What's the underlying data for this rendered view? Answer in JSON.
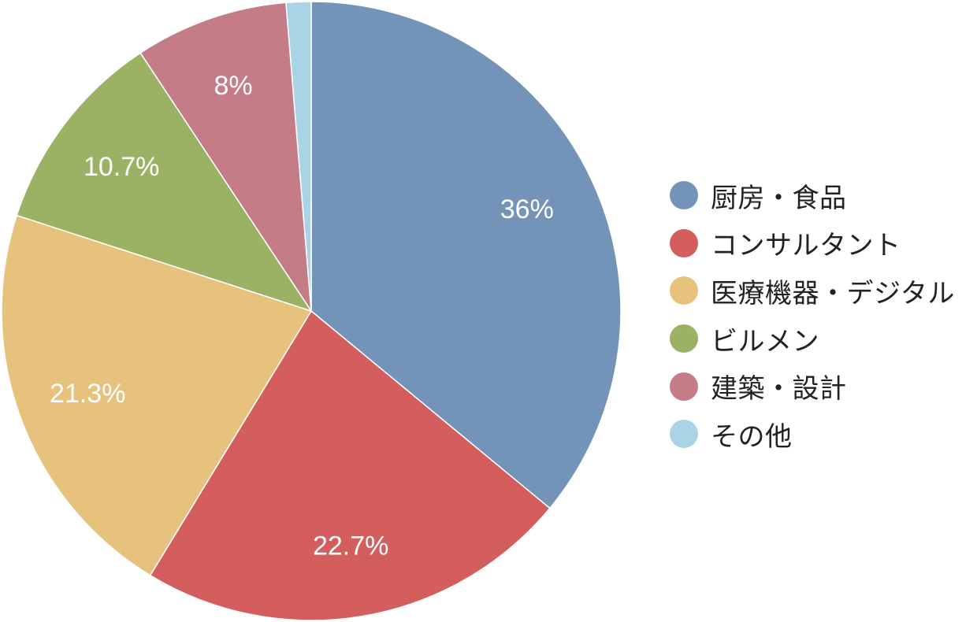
{
  "chart_data": {
    "type": "pie",
    "title": "",
    "start_angle_deg": 0,
    "direction": "clockwise",
    "legend_position": "right",
    "slices": [
      {
        "name": "厨房・食品",
        "value": 36.0,
        "label": "36%",
        "color": "#7393b9"
      },
      {
        "name": "コンサルタント",
        "value": 22.7,
        "label": "22.7%",
        "color": "#d45d5e"
      },
      {
        "name": "医療機器・デジタル",
        "value": 21.3,
        "label": "21.3%",
        "color": "#e7c27c"
      },
      {
        "name": "ビルメン",
        "value": 10.7,
        "label": "10.7%",
        "color": "#9bb265"
      },
      {
        "name": "建築・設計",
        "value": 8.0,
        "label": "8%",
        "color": "#c47c87"
      },
      {
        "name": "その他",
        "value": 1.3,
        "label": "",
        "color": "#aad3e6"
      }
    ]
  }
}
